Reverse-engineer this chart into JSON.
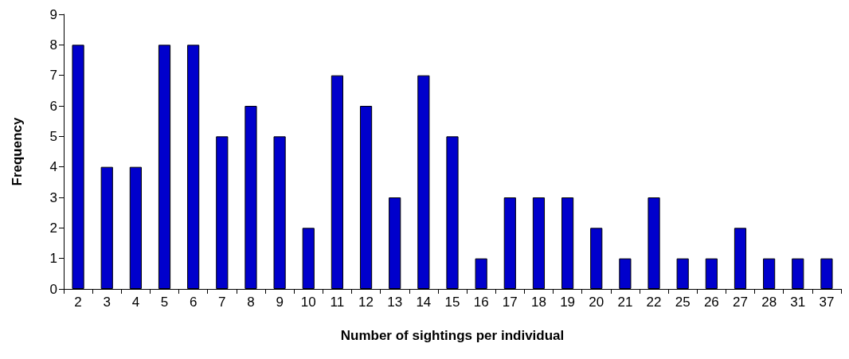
{
  "chart_data": {
    "type": "bar",
    "xlabel": "Number of sightings per individual",
    "ylabel": "Frequency",
    "categories": [
      "2",
      "3",
      "4",
      "5",
      "6",
      "7",
      "8",
      "9",
      "10",
      "11",
      "12",
      "13",
      "14",
      "15",
      "16",
      "17",
      "18",
      "19",
      "20",
      "21",
      "22",
      "25",
      "26",
      "27",
      "28",
      "31",
      "37"
    ],
    "values": [
      8,
      4,
      4,
      8,
      8,
      5,
      6,
      5,
      2,
      7,
      6,
      3,
      7,
      5,
      1,
      3,
      3,
      3,
      2,
      1,
      3,
      1,
      1,
      2,
      1,
      1,
      1
    ],
    "color": "#0000cc",
    "ylim": [
      0,
      9
    ],
    "yticks": [
      0,
      1,
      2,
      3,
      4,
      5,
      6,
      7,
      8,
      9
    ],
    "grid": false
  }
}
